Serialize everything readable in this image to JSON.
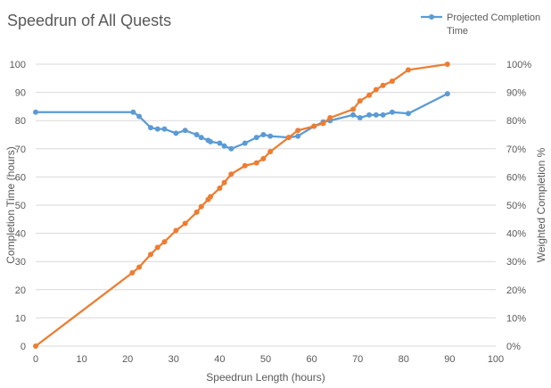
{
  "chart_data": {
    "type": "line",
    "title": "Speedrun of All Quests",
    "xlabel": "Speedrun Length (hours)",
    "ylabel": "Completion Time (hours)",
    "y2label": "Weighted Completion %",
    "xlim": [
      0,
      100
    ],
    "ylim": [
      0,
      100
    ],
    "y2lim": [
      0,
      100
    ],
    "x_ticks": [
      "0",
      "10",
      "20",
      "30",
      "40",
      "50",
      "60",
      "70",
      "80",
      "90",
      "100"
    ],
    "y_ticks": [
      "0",
      "10",
      "20",
      "30",
      "40",
      "50",
      "60",
      "70",
      "80",
      "90",
      "100"
    ],
    "y2_ticks": [
      "0%",
      "10%",
      "20%",
      "30%",
      "40%",
      "50%",
      "60%",
      "70%",
      "80%",
      "90%",
      "100%"
    ],
    "grid": "horizontal",
    "legend": {
      "position": "top-right",
      "entries": [
        "Projected Completion",
        "Time"
      ]
    },
    "colors": {
      "projected": "#5b9bd5",
      "weighted": "#ed7d31"
    },
    "series": [
      {
        "name": "Projected Completion Time",
        "axis": "left",
        "points": [
          [
            0,
            83
          ],
          [
            21.2,
            83
          ],
          [
            22.5,
            81.5
          ],
          [
            25,
            77.5
          ],
          [
            26.5,
            77
          ],
          [
            28,
            77
          ],
          [
            30.5,
            75.5
          ],
          [
            32.5,
            76.5
          ],
          [
            35,
            75
          ],
          [
            36,
            74
          ],
          [
            37.5,
            73
          ],
          [
            38,
            72.5
          ],
          [
            40,
            72
          ],
          [
            41,
            71
          ],
          [
            42.5,
            70
          ],
          [
            45.5,
            72
          ],
          [
            48,
            74
          ],
          [
            49.5,
            75
          ],
          [
            51,
            74.5
          ],
          [
            55,
            74
          ],
          [
            57,
            74.5
          ],
          [
            60.5,
            78
          ],
          [
            62.5,
            79.5
          ],
          [
            64,
            80
          ],
          [
            69,
            82
          ],
          [
            70.5,
            81
          ],
          [
            72.5,
            82
          ],
          [
            74,
            82
          ],
          [
            75.5,
            82
          ],
          [
            77.5,
            83
          ],
          [
            81,
            82.5
          ],
          [
            89.5,
            89.5
          ]
        ]
      },
      {
        "name": "Weighted Completion %",
        "axis": "right",
        "points": [
          [
            0,
            0
          ],
          [
            21,
            26
          ],
          [
            22.5,
            28
          ],
          [
            25,
            32.5
          ],
          [
            26.5,
            35
          ],
          [
            28,
            37
          ],
          [
            30.5,
            41
          ],
          [
            32.5,
            43.5
          ],
          [
            35,
            47.5
          ],
          [
            36,
            49.5
          ],
          [
            37.5,
            52
          ],
          [
            38,
            53
          ],
          [
            40,
            56
          ],
          [
            41,
            58
          ],
          [
            42.5,
            61
          ],
          [
            45.5,
            64
          ],
          [
            48,
            65
          ],
          [
            49.5,
            66.5
          ],
          [
            51,
            69
          ],
          [
            55,
            74
          ],
          [
            57,
            76.5
          ],
          [
            60.5,
            78
          ],
          [
            62.5,
            79
          ],
          [
            64,
            81
          ],
          [
            69,
            84
          ],
          [
            70.5,
            87
          ],
          [
            72.5,
            89
          ],
          [
            74,
            91
          ],
          [
            75.5,
            92.5
          ],
          [
            77.5,
            94
          ],
          [
            81,
            98
          ],
          [
            89.5,
            100
          ]
        ]
      }
    ]
  }
}
